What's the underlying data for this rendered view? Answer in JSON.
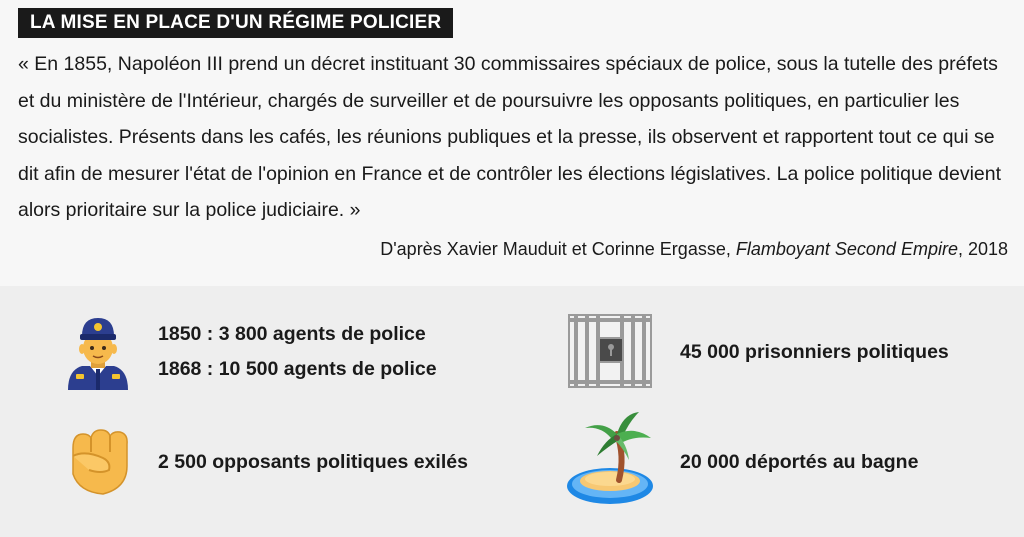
{
  "header": {
    "title": "LA MISE EN PLACE D'UN RÉGIME POLICIER"
  },
  "quote": {
    "text": "« En 1855, Napoléon III prend un décret instituant 30 commissaires spéciaux de police, sous la tutelle des préfets et du ministère de l'Intérieur, chargés de surveiller et de poursuivre les opposants politiques, en particulier les socialistes. Présents dans les cafés, les réunions publiques et la presse, ils observent et rapportent tout ce qui se dit afin de mesurer l'état de l'opinion en France et de contrôler les élections législatives. La police politique devient alors prioritaire sur la police judiciaire. »",
    "source_prefix": "D'après Xavier Mauduit et Corinne Ergasse, ",
    "source_title": "Flamboyant Second Empire",
    "source_suffix": ", 2018"
  },
  "stats": {
    "police": {
      "icon": "police-officer-icon",
      "line1": "1850 : 3 800 agents de police",
      "line2": "1868 : 10 500 agents de police"
    },
    "prison": {
      "icon": "prison-bars-icon",
      "text": "45 000 prisonniers politiques"
    },
    "exile": {
      "icon": "raised-fist-icon",
      "text": "2 500 opposants politiques exilés"
    },
    "bagne": {
      "icon": "desert-island-icon",
      "text": "20 000 déportés au bagne"
    }
  },
  "colors": {
    "title_bg": "#1a1a1a",
    "title_fg": "#ffffff",
    "top_bg": "#f7f7f7",
    "bottom_bg": "#eeeeee"
  }
}
